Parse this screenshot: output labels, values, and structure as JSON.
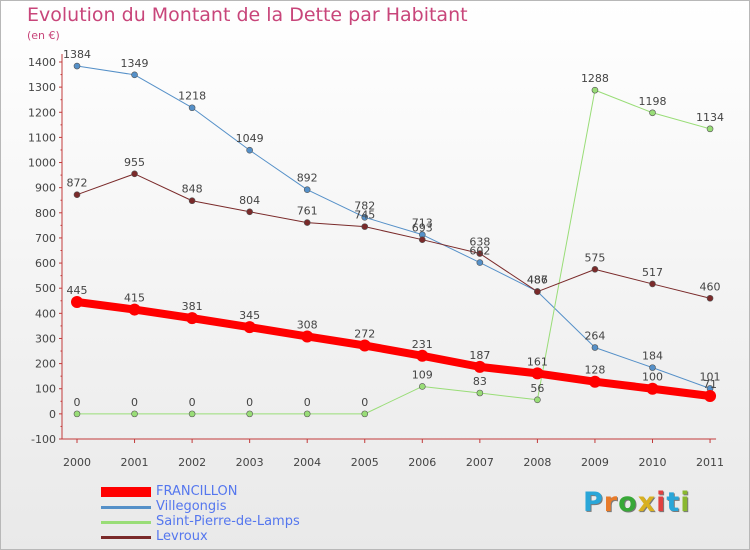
{
  "title": "Evolution du Montant de la Dette par Habitant",
  "unit": "(en €)",
  "logo": {
    "text": "Proxiti",
    "colors": [
      "#2aa6d8",
      "#e87b2a",
      "#38a838",
      "#d8b020",
      "#e04040",
      "#2aa6d8",
      "#8ab830"
    ]
  },
  "chart_data": {
    "type": "line",
    "title": "Evolution du Montant de la Dette par Habitant",
    "ylabel": "(en €)",
    "xlabel": "",
    "x": [
      "2000",
      "2001",
      "2002",
      "2003",
      "2004",
      "2005",
      "2006",
      "2007",
      "2008",
      "2009",
      "2010",
      "2011"
    ],
    "ylim": [
      -100,
      1400
    ],
    "yticks": [
      -100,
      0,
      100,
      200,
      300,
      400,
      500,
      600,
      700,
      800,
      900,
      1000,
      1100,
      1200,
      1300,
      1400
    ],
    "grid": false,
    "legend_position": "bottom-left",
    "series": [
      {
        "name": "Villegongis",
        "color": "#5590c8",
        "stroke_width": 1,
        "values": [
          1384,
          1349,
          1218,
          1049,
          892,
          782,
          713,
          602,
          487,
          264,
          184,
          101
        ]
      },
      {
        "name": "Saint-Pierre-de-Lamps",
        "color": "#99dd77",
        "stroke_width": 1,
        "values": [
          0,
          0,
          0,
          0,
          0,
          0,
          109,
          83,
          56,
          1288,
          1198,
          1134
        ]
      },
      {
        "name": "Levroux",
        "color": "#7a2a2a",
        "stroke_width": 1,
        "values": [
          872,
          955,
          848,
          804,
          761,
          745,
          693,
          638,
          486,
          575,
          517,
          460
        ]
      },
      {
        "name": "FRANCILLON",
        "color": "#ff0000",
        "stroke_width": 8,
        "values": [
          445,
          415,
          381,
          345,
          308,
          272,
          231,
          187,
          161,
          128,
          100,
          71
        ]
      }
    ],
    "data_labels": [
      {
        "series": "Villegongis",
        "labels": [
          "1384",
          "1349",
          "1218",
          "1049",
          "892",
          "782",
          "713",
          "602",
          "487",
          "264",
          "184",
          "101"
        ]
      },
      {
        "series": "Saint-Pierre-de-Lamps",
        "labels": [
          "0",
          "0",
          "0",
          "0",
          "0",
          "0",
          "109",
          "83",
          "56",
          "1288",
          "1198",
          "1134"
        ]
      },
      {
        "series": "Levroux",
        "labels": [
          "872",
          "955",
          "848",
          "804",
          "761",
          "745",
          "693",
          "638",
          "486",
          "575",
          "517",
          "460"
        ]
      },
      {
        "series": "FRANCILLON",
        "labels": [
          "445",
          "415",
          "381",
          "345",
          "308",
          "272",
          "231",
          "187",
          "161",
          "128",
          "100",
          "71"
        ]
      }
    ],
    "legend_order": [
      "FRANCILLON",
      "Villegongis",
      "Saint-Pierre-de-Lamps",
      "Levroux"
    ]
  }
}
